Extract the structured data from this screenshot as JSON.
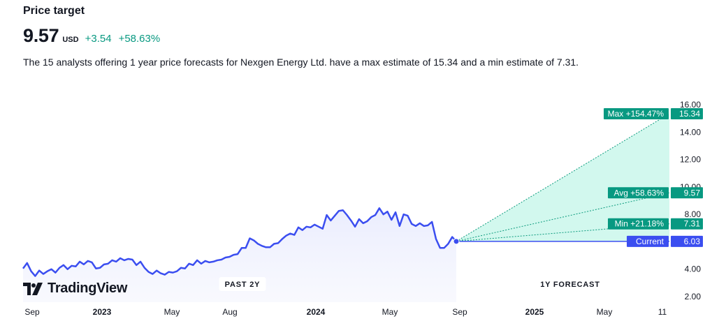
{
  "header": {
    "title": "Price target",
    "price": "9.57",
    "currency": "USD",
    "change": "+3.54",
    "change_pct": "+58.63%",
    "description": "The 15 analysts offering 1 year price forecasts for Nexgen Energy Ltd. have a max estimate of 15.34 and a min estimate of 7.31."
  },
  "logo": {
    "text": "TradingView",
    "icon": "tradingview-logo-icon"
  },
  "colors": {
    "line": "#3b4ef0",
    "forecast_fill": "#d2f8ee",
    "forecast_line": "#0a9a7c",
    "badge_green": "#089981",
    "badge_blue": "#3b4ef0",
    "axis_text": "#131722"
  },
  "chart_data": {
    "type": "line",
    "ylim": [
      2,
      16
    ],
    "y_ticks": [
      "16.00",
      "14.00",
      "12.00",
      "10.00",
      "8.00",
      "4.00",
      "2.00"
    ],
    "x_ticks": [
      {
        "label": "Sep",
        "bold": false
      },
      {
        "label": "2023",
        "bold": true
      },
      {
        "label": "May",
        "bold": false
      },
      {
        "label": "Aug",
        "bold": false
      },
      {
        "label": "2024",
        "bold": true
      },
      {
        "label": "May",
        "bold": false
      },
      {
        "label": "Sep",
        "bold": false
      },
      {
        "label": "2025",
        "bold": true
      },
      {
        "label": "May",
        "bold": false
      },
      {
        "label": "11",
        "bold": false
      }
    ],
    "period_labels": {
      "past": "PAST 2Y",
      "forecast": "1Y FORECAST"
    },
    "series": [
      {
        "values": [
          4.05,
          4.45,
          3.85,
          3.5,
          3.9,
          3.65,
          3.85,
          4.0,
          3.75,
          4.1,
          4.3,
          4.0,
          4.25,
          4.2,
          4.55,
          4.35,
          4.6,
          4.5,
          4.05,
          4.1,
          4.35,
          4.4,
          4.65,
          4.55,
          4.8,
          4.65,
          4.75,
          4.7,
          4.3,
          4.55,
          4.1,
          3.8,
          3.65,
          3.9,
          3.7,
          3.6,
          3.8,
          3.75,
          3.85,
          4.1,
          4.05,
          4.4,
          4.3,
          4.65,
          4.4,
          4.6,
          4.5,
          4.55,
          4.65,
          4.7,
          4.85,
          4.9,
          5.05,
          5.1,
          5.55,
          5.55,
          6.25,
          6.1,
          5.85,
          5.7,
          5.6,
          5.6,
          5.85,
          5.9,
          6.2,
          6.45,
          6.6,
          6.5,
          7.05,
          6.85,
          7.1,
          7.05,
          7.25,
          7.1,
          6.95,
          7.95,
          7.55,
          7.9,
          8.25,
          8.3,
          7.95,
          7.55,
          7.1,
          7.65,
          7.35,
          7.5,
          7.8,
          7.95,
          8.45,
          8.0,
          8.2,
          7.6,
          8.15,
          7.15,
          8.0,
          7.9,
          7.3,
          7.15,
          7.35,
          7.15,
          7.2,
          7.45,
          6.2,
          5.55,
          5.55,
          5.85,
          6.35,
          6.03
        ]
      }
    ],
    "forecast": {
      "current": {
        "label": "Current",
        "value": "6.03"
      },
      "max": {
        "label": "Max +154.47%",
        "value": "15.34"
      },
      "avg": {
        "label": "Avg +58.63%",
        "value": "9.57"
      },
      "min": {
        "label": "Min +21.18%",
        "value": "7.31"
      }
    }
  }
}
